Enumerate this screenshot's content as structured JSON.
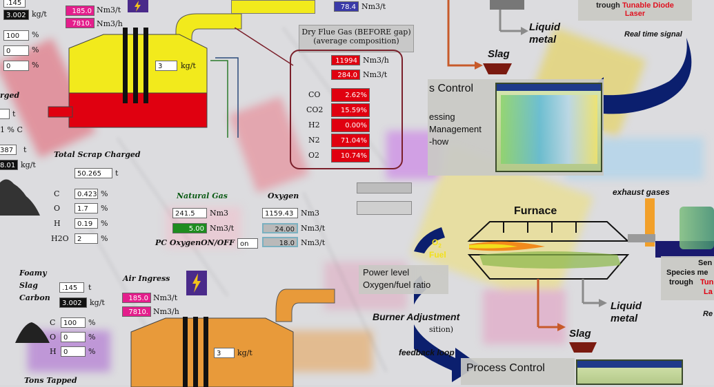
{
  "left_panel": {
    "top_boxes": [
      ".145",
      "3.002",
      "100",
      "0",
      "0"
    ],
    "top_units": [
      "kg/t",
      "%",
      "%",
      "%"
    ],
    "gas_flows": [
      "185.0",
      "7810."
    ],
    "gas_units": [
      "Nm3/t",
      "Nm3/h"
    ],
    "furnace_input_value": "3",
    "furnace_input_unit": "kg/t",
    "side_fragments": [
      "rged",
      "t",
      "1 % C",
      "387",
      "t",
      "8.01",
      "kg/t"
    ],
    "total_scrap_title": "Total Scrap Charged",
    "total_scrap_value": "50.265",
    "total_scrap_unit": "t",
    "composition": [
      {
        "el": "C",
        "val": "0.423",
        "unit": "%"
      },
      {
        "el": "O",
        "val": "1.7",
        "unit": "%"
      },
      {
        "el": "H",
        "val": "0.19",
        "unit": "%"
      },
      {
        "el": "H2O",
        "val": "2",
        "unit": "%"
      }
    ],
    "natural_gas_title": "Natural Gas",
    "oxygen_title": "Oxygen",
    "natural_gas_rows": [
      {
        "val": "241.5",
        "unit": "Nm3"
      },
      {
        "val": "5.00",
        "unit": "Nm3/t"
      }
    ],
    "oxygen_rows": [
      {
        "val": "1159.43",
        "unit": "Nm3"
      },
      {
        "val": "24.00",
        "unit": "Nm3/t"
      },
      {
        "val": "18.0",
        "unit": "Nm3/t"
      }
    ],
    "pc_oxygen_label": "PC OxygenON/OFF",
    "pc_oxygen_state": "on",
    "foamy_slag_label": [
      "Foamy",
      "Slag",
      "Carbon"
    ],
    "foamy_values": [
      ".145",
      "3.002"
    ],
    "foamy_units": [
      "t",
      "kg/t"
    ],
    "bottom_comp": [
      {
        "el": "C",
        "val": "100",
        "unit": "%"
      },
      {
        "el": "O",
        "val": "0",
        "unit": "%"
      },
      {
        "el": "H",
        "val": "0",
        "unit": "%"
      }
    ],
    "air_ingress_title": "Air Ingress",
    "air_flows": [
      "185.0",
      "7810."
    ],
    "air_units": [
      "Nm3/t",
      "Nm3/h"
    ],
    "bottom_furnace_value": "3",
    "bottom_furnace_unit": "kg/t",
    "tons_tapped": "Tons Tapped",
    "flue_gas_value": "78.4",
    "flue_gas_value_unit": "Nm3/t"
  },
  "flue_gas": {
    "title": "Dry Flue Gas (BEFORE gap)",
    "subtitle": "(average composition)",
    "flows": [
      {
        "val": "11994",
        "unit": "Nm3/h"
      },
      {
        "val": "284.0",
        "unit": "Nm3/t"
      }
    ],
    "species": [
      {
        "name": "CO",
        "val": "2.62%"
      },
      {
        "name": "CO2",
        "val": "15.59%"
      },
      {
        "name": "H2",
        "val": "0.00%"
      },
      {
        "name": "N2",
        "val": "71.04%"
      },
      {
        "name": "O2",
        "val": "10.74%"
      }
    ]
  },
  "right_panel": {
    "sensor_text": [
      "trough",
      "Tunable Diode",
      "Laser"
    ],
    "realtime": "Real time signal",
    "liquid_metal": [
      "Liquid",
      "metal"
    ],
    "slag": "Slag",
    "process_control_title": "s Control",
    "process_list": [
      "essing",
      "Management",
      "-how"
    ],
    "exhaust": "exhaust gases",
    "furnace": "Furnace",
    "o2": "O",
    "o2_sub": "2",
    "fuel": "Fuel",
    "power_level": [
      "Power level",
      "Oxygen/fuel ratio"
    ],
    "burner_adjustment": "Burner Adjustment",
    "burner_sub": "sition)",
    "feedback_loop": "feedback loop",
    "liquid_metal_2": [
      "Liquid",
      "metal"
    ],
    "slag_2": "Slag",
    "process_control_2": "Process Control",
    "sensor_right": [
      "Sen",
      "Species me",
      "trough",
      "Tun",
      "La"
    ],
    "re_fragment": "Re"
  },
  "colors": {
    "yellow": "#f2ea1c",
    "red": "#e00010",
    "navy": "#0b1f6e",
    "orange_arrow": "#c75a2a",
    "wine": "#7a1f2a"
  },
  "icons": [
    "lightning-icon",
    "lightning-icon-bottom"
  ]
}
